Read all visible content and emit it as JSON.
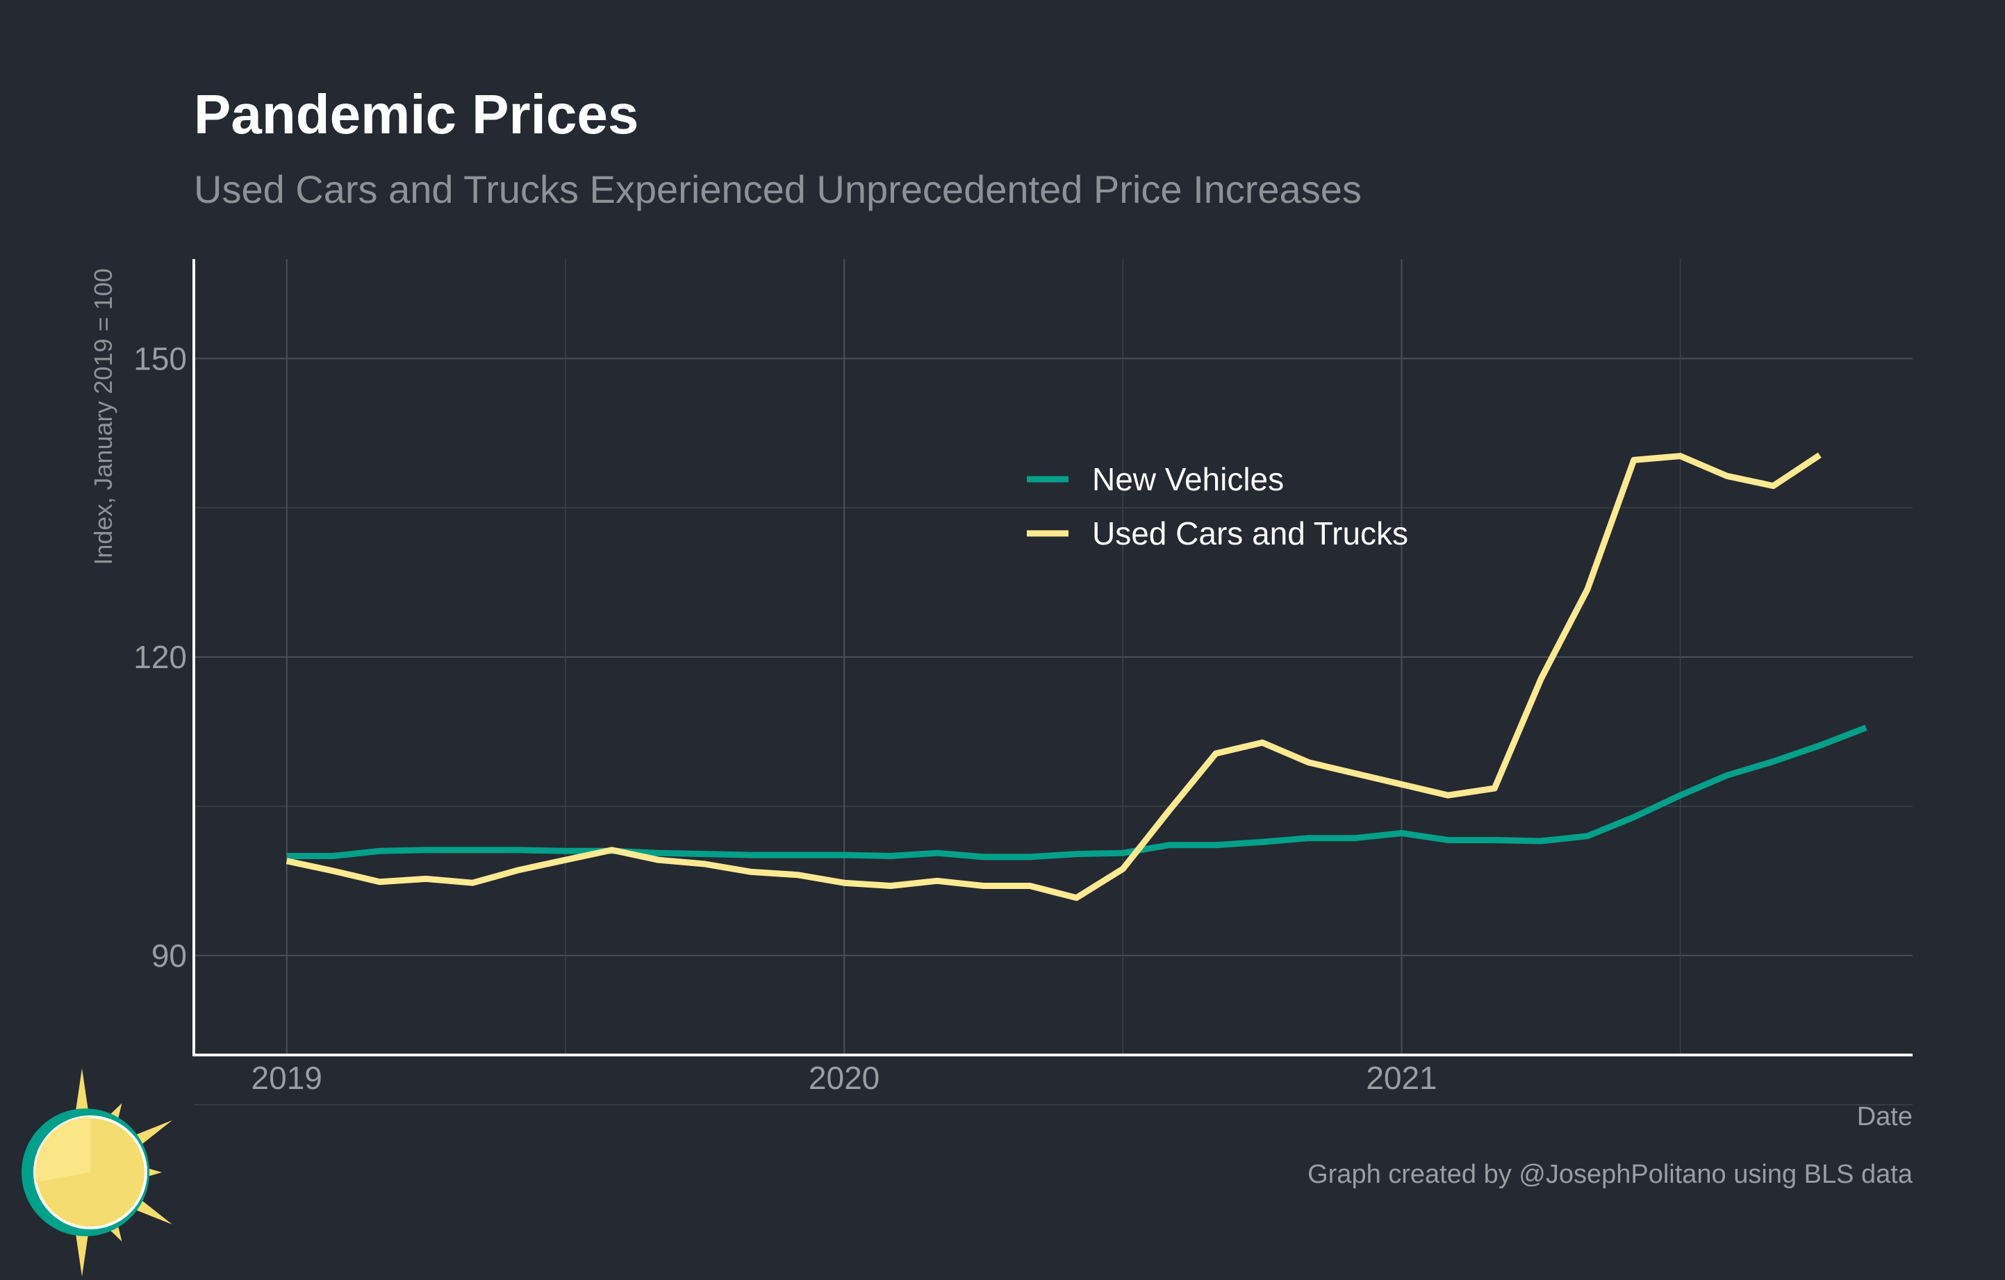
{
  "chart_data": {
    "type": "line",
    "title": "Pandemic Prices",
    "subtitle": "Used Cars and Trucks Experienced Unprecedented Price Increases",
    "xlabel": "Date",
    "ylabel": "Index, January 2019 = 100",
    "caption": "Graph created by @JosephPolitano using BLS data",
    "x_start": "2019-01",
    "xlim": [
      "2018-11",
      "2021-12"
    ],
    "x_ticks": [
      "2019",
      "2020",
      "2021"
    ],
    "ylim": [
      80,
      160
    ],
    "y_ticks": [
      90,
      120,
      150
    ],
    "grid": true,
    "legend_position": "inside-center-right",
    "series": [
      {
        "name": "New Vehicles",
        "color": "#00a08a",
        "values": [
          100.0,
          100.0,
          100.5,
          100.6,
          100.6,
          100.6,
          100.5,
          100.5,
          100.3,
          100.2,
          100.1,
          100.1,
          100.1,
          100.0,
          100.3,
          99.9,
          99.9,
          100.2,
          100.3,
          101.1,
          101.1,
          101.4,
          101.8,
          101.8,
          102.3,
          101.6,
          101.6,
          101.5,
          102.0,
          103.9,
          106.1,
          108.1,
          109.5,
          111.1,
          112.9
        ]
      },
      {
        "name": "Used Cars and Trucks",
        "color": "#fde992",
        "values": [
          99.5,
          98.5,
          97.4,
          97.7,
          97.3,
          98.6,
          99.6,
          100.6,
          99.6,
          99.2,
          98.4,
          98.1,
          97.3,
          97.0,
          97.5,
          97.0,
          97.0,
          95.8,
          98.7,
          104.6,
          110.3,
          111.4,
          109.4,
          108.3,
          107.2,
          106.1,
          106.8,
          117.8,
          126.8,
          139.8,
          140.2,
          138.2,
          137.2,
          140.3
        ]
      }
    ]
  },
  "logo": {
    "name": "sun-logo",
    "colors": [
      "#f5dc6e",
      "#00a08a",
      "#ffffff"
    ]
  }
}
